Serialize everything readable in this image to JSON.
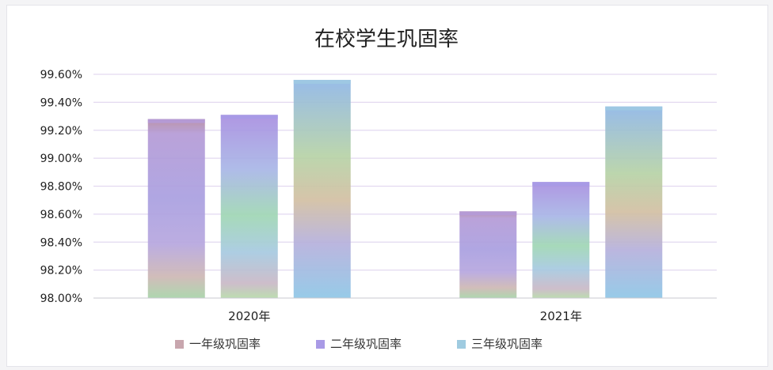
{
  "chart_data": {
    "type": "bar",
    "title": "在校学生巩固率",
    "xlabel": "",
    "ylabel": "",
    "categories": [
      "2020年",
      "2021年"
    ],
    "series": [
      {
        "name": "一年级巩固率",
        "values": [
          99.28,
          98.62
        ],
        "color": "#b59ad8"
      },
      {
        "name": "二年级巩固率",
        "values": [
          99.31,
          98.83
        ],
        "color": "#a79ae6"
      },
      {
        "name": "三年级巩固率",
        "values": [
          99.56,
          99.37
        ],
        "color": "#9ec9e2"
      }
    ],
    "ylim": [
      98.0,
      99.6
    ],
    "yticks": [
      "98.00%",
      "98.20%",
      "98.40%",
      "98.60%",
      "98.80%",
      "99.00%",
      "99.20%",
      "99.40%",
      "99.60%"
    ],
    "grid": true,
    "legend": "bottom",
    "legend_colors": [
      "#c8a6ae",
      "#a99ae6",
      "#9fcbe0"
    ]
  }
}
